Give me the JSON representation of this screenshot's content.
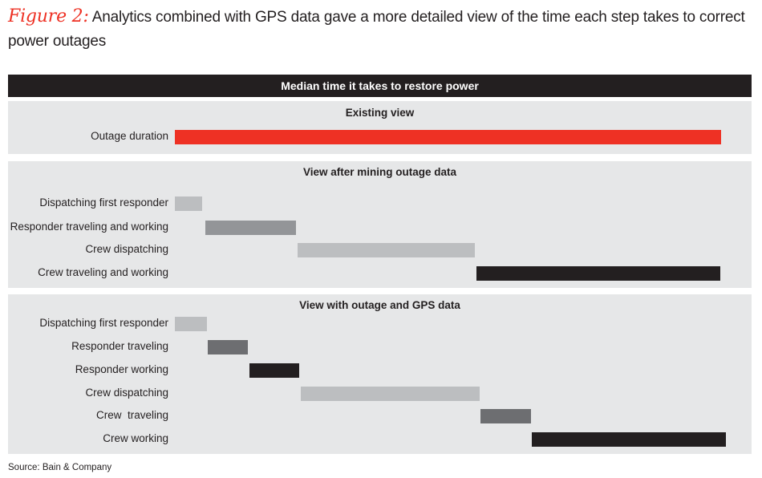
{
  "title": {
    "figure_label": "Figure 2:",
    "text": "Analytics combined with GPS data gave a more detailed view of the time each step takes to correct power outages"
  },
  "source": "Source: Bain & Company",
  "chart_data": {
    "type": "bar",
    "subtype": "gantt",
    "title": "Median time it takes to restore power",
    "xlim": [
      0,
      101
    ],
    "axis_shown": false,
    "grid": false,
    "panels": [
      {
        "title": "Existing view",
        "rows": [
          {
            "label": "Outage duration",
            "start": 0,
            "end": 100,
            "color": "#ee3124"
          }
        ]
      },
      {
        "title": "View after mining outage data",
        "rows": [
          {
            "label": "Dispatching first responder",
            "start": 0,
            "end": 5,
            "color": "#bcbec0"
          },
          {
            "label": "Responder traveling and working",
            "start": 5.6,
            "end": 22.2,
            "color": "#939598"
          },
          {
            "label": "Crew dispatching",
            "start": 22.5,
            "end": 54.9,
            "color": "#bcbec0"
          },
          {
            "label": "Crew traveling and working",
            "start": 55.2,
            "end": 99.9,
            "color": "#231f20"
          }
        ]
      },
      {
        "title": "View with outage and GPS data",
        "rows": [
          {
            "label": "Dispatching first responder",
            "start": 0,
            "end": 5.9,
            "color": "#bcbec0"
          },
          {
            "label": "Responder traveling",
            "start": 6,
            "end": 13.4,
            "color": "#6d6e71"
          },
          {
            "label": "Responder working",
            "start": 13.7,
            "end": 22.8,
            "color": "#231f20"
          },
          {
            "label": "Crew dispatching",
            "start": 23,
            "end": 55.8,
            "color": "#bcbec0"
          },
          {
            "label": "Crew  traveling",
            "start": 55.9,
            "end": 65.2,
            "color": "#6d6e71"
          },
          {
            "label": "Crew working",
            "start": 65.3,
            "end": 100.9,
            "color": "#231f20"
          }
        ]
      }
    ]
  }
}
